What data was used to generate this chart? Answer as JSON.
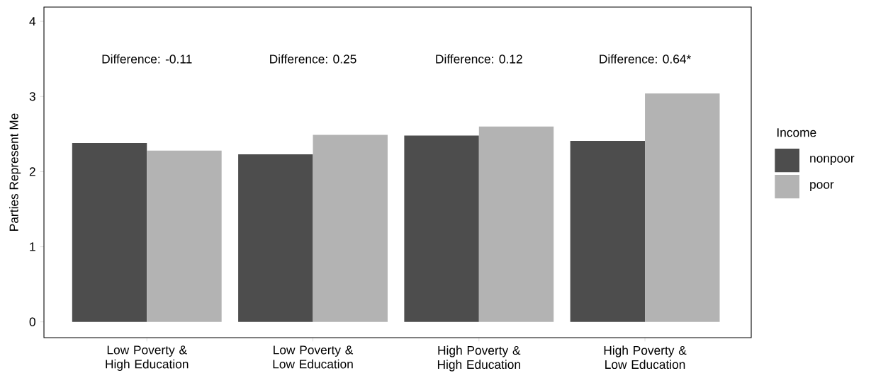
{
  "chart_data": {
    "type": "bar",
    "ylabel": "Parties Represent Me",
    "legend_title": "Income",
    "categories": [
      "Low Poverty & High Education",
      "Low Poverty & Low Education",
      "High Poverty & High Education",
      "High Poverty & Low Education"
    ],
    "series": [
      {
        "name": "nonpoor",
        "color": "#4d4d4d",
        "values": [
          2.38,
          2.23,
          2.48,
          2.41
        ]
      },
      {
        "name": "poor",
        "color": "#b3b3b3",
        "values": [
          2.28,
          2.49,
          2.6,
          3.04
        ]
      }
    ],
    "ylim": [
      -0.21,
      4.19
    ],
    "yticks": [
      0,
      1,
      2,
      3,
      4
    ],
    "grid": false,
    "legend": "right",
    "annotations": [
      "Difference: -0.11",
      "Difference: 0.25",
      "Difference: 0.12",
      "Difference: 0.64*"
    ]
  }
}
